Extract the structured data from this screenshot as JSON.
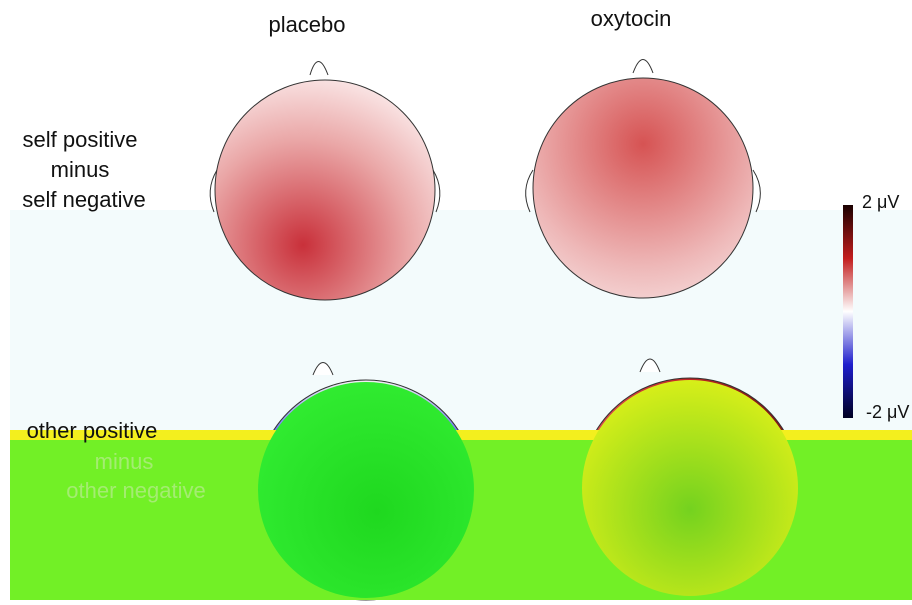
{
  "columns": [
    "placebo",
    "oxytocin"
  ],
  "rows": [
    {
      "label": [
        "self positive",
        "minus",
        "self negative"
      ]
    },
    {
      "label": [
        "other positive",
        "minus",
        "other negative"
      ]
    }
  ],
  "colorbar": {
    "max_label": "2 μV",
    "min_label": "-2 μV"
  }
}
